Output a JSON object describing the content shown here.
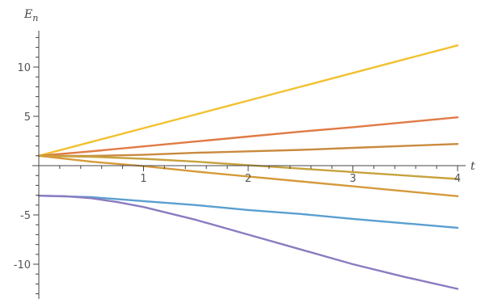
{
  "chart_data": {
    "type": "line",
    "ylabel": "E",
    "ylabel_sub": "n",
    "xlabel_fragment": "t",
    "xlim": [
      0,
      4
    ],
    "ylim": [
      -13.5,
      13.5
    ],
    "x_ticks": [
      1,
      2,
      3,
      4
    ],
    "x_tick_labels": [
      "1",
      "2",
      "3",
      "4"
    ],
    "y_ticks": [
      -10,
      -5,
      5,
      10
    ],
    "y_tick_labels": [
      "-10",
      "-5",
      "5",
      "10"
    ],
    "grid": false,
    "legend": "none",
    "series": [
      {
        "color": "#F2C12E",
        "x": [
          0,
          0.5,
          1,
          1.5,
          2,
          2.5,
          3,
          3.5,
          4
        ],
        "y": [
          1,
          2.4,
          3.8,
          5.2,
          6.6,
          8.0,
          9.4,
          10.8,
          12.2
        ]
      },
      {
        "color": "#E07A45",
        "x": [
          0,
          0.5,
          1,
          1.5,
          2,
          2.5,
          3,
          3.5,
          4
        ],
        "y": [
          1,
          1.45,
          1.95,
          2.45,
          2.95,
          3.45,
          3.9,
          4.4,
          4.9
        ]
      },
      {
        "color": "#C98A3E",
        "x": [
          0,
          0.5,
          1,
          1.5,
          2,
          2.5,
          3,
          3.5,
          4
        ],
        "y": [
          1,
          0.98,
          1.1,
          1.3,
          1.45,
          1.6,
          1.8,
          2.0,
          2.2
        ]
      },
      {
        "color": "#C7A23E",
        "x": [
          0,
          0.5,
          1,
          1.5,
          2,
          2.5,
          3,
          3.5,
          4
        ],
        "y": [
          1,
          0.9,
          0.7,
          0.4,
          0.05,
          -0.3,
          -0.65,
          -1.0,
          -1.35
        ]
      },
      {
        "color": "#D59A3A",
        "x": [
          0,
          0.5,
          1,
          1.5,
          2,
          2.5,
          3,
          3.5,
          4
        ],
        "y": [
          1,
          0.4,
          -0.05,
          -0.6,
          -1.1,
          -1.6,
          -2.1,
          -2.6,
          -3.1
        ]
      },
      {
        "color": "#5A9FD0",
        "x": [
          0,
          0.5,
          1,
          1.5,
          2,
          2.5,
          3,
          3.5,
          4
        ],
        "y": [
          -3.05,
          -3.2,
          -3.6,
          -4.0,
          -4.5,
          -4.9,
          -5.4,
          -5.85,
          -6.3
        ]
      },
      {
        "color": "#8B7BC0",
        "x": [
          0,
          0.25,
          0.5,
          0.75,
          1,
          1.5,
          2,
          2.5,
          3,
          3.5,
          4
        ],
        "y": [
          -3.05,
          -3.1,
          -3.3,
          -3.7,
          -4.2,
          -5.5,
          -7.0,
          -8.5,
          -10.0,
          -11.3,
          -12.5
        ]
      }
    ]
  }
}
